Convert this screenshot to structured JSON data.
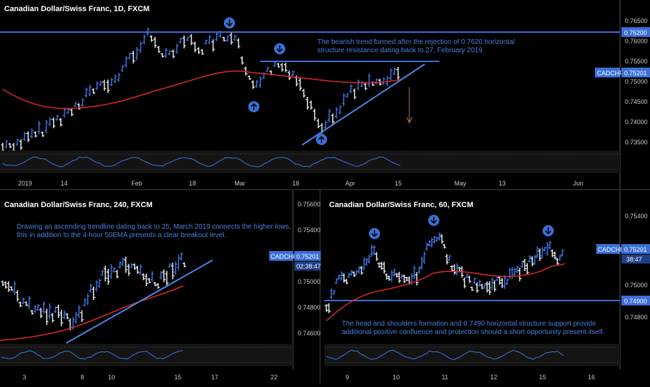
{
  "colors": {
    "background": "#000000",
    "blue_candle": "#3a6fd8",
    "white_candle": "#e6e6e6",
    "ema": "#d82626",
    "level_line": "#3a6fd8",
    "trendline": "#4a86e8",
    "annotation": "#4a7fe0",
    "oscillator": "#3a78e0",
    "arrow_down_marker": "#3a6fd8",
    "projection_arrow": "#c08060"
  },
  "charts": {
    "daily": {
      "title": "Canadian Dollar/Swiss Franc, 1D, FXCM",
      "y_ticks": [
        "0.76500",
        "0.76000",
        "0.75500",
        "0.75000",
        "0.74500",
        "0.74000",
        "0.73500"
      ],
      "x_ticks": [
        "2019",
        "14",
        "Feb",
        "18",
        "Mar",
        "18",
        "Apr",
        "15",
        "May",
        "13",
        "Jun"
      ],
      "level_label": "0.76200",
      "symbol_label": "CADCHF",
      "price_label": "0.75201",
      "annotation_line1": "The bearish trend formed after the rejection of 0.7620 horizontal",
      "annotation_line2": "structure resistance dating back to 27, February 2019.",
      "markers": [
        "down-arrow",
        "down-arrow",
        "up-arrow",
        "up-arrow"
      ]
    },
    "h4": {
      "title": "Canadian Dollar/Swiss Franc, 240, FXCM",
      "y_ticks": [
        "0.75600",
        "0.75400",
        "0.75000",
        "0.74800",
        "0.74600"
      ],
      "x_ticks": [
        "3",
        "8",
        "10",
        "15",
        "17",
        "22"
      ],
      "symbol_label": "CADCHF",
      "price_label": "0.75201",
      "countdown_label": "02:38:47",
      "annotation_line1": "Drawing an ascending trendline dating back to 25, March 2019 connects the higher lows,",
      "annotation_line2": "this in addition to the 4-hour 50EMA presents a clear breakout level."
    },
    "h1": {
      "title": "Canadian Dollar/Swiss Franc, 60, FXCM",
      "y_ticks": [
        "0.75400",
        "0.75000",
        "0.74800"
      ],
      "x_ticks": [
        "9",
        "10",
        "11",
        "12",
        "15",
        "16"
      ],
      "level_label": "0.74900",
      "symbol_label": "CADCHF",
      "price_label": "0.75201",
      "countdown_label": "38:47",
      "annotation_line1": "The head and shoulders formation and 0.7490 horizontal structure support provide",
      "annotation_line2": "additional positive confluence and protection should a short opportunity present itself.",
      "markers": [
        "down-arrow",
        "down-arrow",
        "down-arrow"
      ]
    }
  },
  "chart_data": [
    {
      "type": "candlestick",
      "title": "Canadian Dollar/Swiss Franc, 1D, FXCM",
      "x_range": [
        "2019-01-01",
        "2019-06-01"
      ],
      "ylim": [
        0.733,
        0.768
      ],
      "horizontal_level": 0.762,
      "last_price": 0.75201,
      "series": [
        {
          "name": "",
          "kind": "ema",
          "x": [
            "2019-01-01",
            "2019-01-15",
            "2019-02-01",
            "2019-02-18",
            "2019-03-01",
            "2019-03-18",
            "2019-04-01",
            "2019-04-15"
          ],
          "values": [
            0.7478,
            0.7445,
            0.7478,
            0.7518,
            0.753,
            0.752,
            0.7508,
            0.751
          ]
        },
        {
          "name": "",
          "kind": "trendline",
          "x": [
            "2019-03-23",
            "2019-04-18"
          ],
          "values": [
            0.7345,
            0.7555
          ]
        },
        {
          "name": "",
          "kind": "resistance",
          "x": [
            "2019-03-06",
            "2019-04-28"
          ],
          "values": [
            0.7553,
            0.7553
          ]
        }
      ]
    },
    {
      "type": "candlestick",
      "title": "Canadian Dollar/Swiss Franc, 240, FXCM",
      "ylim": [
        0.7455,
        0.7565
      ],
      "last_price": 0.75201,
      "series": [
        {
          "name": "",
          "kind": "ema",
          "values": [
            0.7462,
            0.7466,
            0.7474,
            0.7484,
            0.7491,
            0.7496
          ]
        },
        {
          "name": "",
          "kind": "trendline",
          "values": [
            0.7458,
            0.7518
          ]
        }
      ]
    },
    {
      "type": "candlestick",
      "title": "Canadian Dollar/Swiss Franc, 60, FXCM",
      "ylim": [
        0.7468,
        0.7555
      ],
      "horizontal_level": 0.749,
      "last_price": 0.75201,
      "series": [
        {
          "name": "",
          "kind": "ema",
          "values": [
            0.7488,
            0.7499,
            0.7505,
            0.7503,
            0.7501,
            0.7505,
            0.751,
            0.7515
          ]
        }
      ]
    }
  ]
}
